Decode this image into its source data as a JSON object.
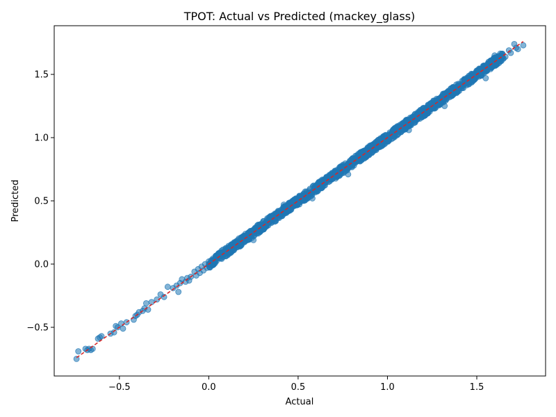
{
  "chart_data": {
    "type": "scatter",
    "title": "TPOT: Actual vs Predicted (mackey_glass)",
    "xlabel": "Actual",
    "ylabel": "Predicted",
    "xlim": [
      -0.865,
      1.885
    ],
    "ylim": [
      -0.885,
      1.885
    ],
    "xticks": [
      -0.5,
      0.0,
      0.5,
      1.0,
      1.5
    ],
    "xtick_labels": [
      "−0.5",
      "0.0",
      "0.5",
      "1.0",
      "1.5"
    ],
    "yticks": [
      -0.5,
      0.0,
      0.5,
      1.0,
      1.5
    ],
    "ytick_labels": [
      "−0.5",
      "0.0",
      "0.5",
      "1.0",
      "1.5"
    ],
    "grid": false,
    "marker_color": "#1f77b4",
    "marker_alpha": 0.55,
    "reference_line": {
      "style": "dashed",
      "color": "#d62728",
      "x": [
        -0.74,
        1.76
      ],
      "y": [
        -0.74,
        1.76
      ]
    },
    "points": [
      [
        -0.74,
        -0.75
      ],
      [
        -0.73,
        -0.69
      ],
      [
        -0.69,
        -0.67
      ],
      [
        -0.68,
        -0.68
      ],
      [
        -0.67,
        -0.67
      ],
      [
        -0.66,
        -0.68
      ],
      [
        -0.65,
        -0.67
      ],
      [
        -0.62,
        -0.59
      ],
      [
        -0.61,
        -0.58
      ],
      [
        -0.6,
        -0.57
      ],
      [
        -0.55,
        -0.55
      ],
      [
        -0.53,
        -0.54
      ],
      [
        -0.52,
        -0.49
      ],
      [
        -0.51,
        -0.5
      ],
      [
        -0.49,
        -0.47
      ],
      [
        -0.48,
        -0.51
      ],
      [
        -0.46,
        -0.46
      ],
      [
        -0.42,
        -0.44
      ],
      [
        -0.41,
        -0.41
      ],
      [
        -0.4,
        -0.4
      ],
      [
        -0.39,
        -0.38
      ],
      [
        -0.37,
        -0.37
      ],
      [
        -0.36,
        -0.35
      ],
      [
        -0.35,
        -0.31
      ],
      [
        -0.34,
        -0.36
      ],
      [
        -0.32,
        -0.3
      ],
      [
        -0.29,
        -0.28
      ],
      [
        -0.27,
        -0.24
      ],
      [
        -0.25,
        -0.26
      ],
      [
        -0.23,
        -0.18
      ],
      [
        -0.2,
        -0.19
      ],
      [
        -0.18,
        -0.17
      ],
      [
        -0.17,
        -0.22
      ],
      [
        -0.16,
        -0.15
      ],
      [
        -0.15,
        -0.12
      ],
      [
        -0.13,
        -0.14
      ],
      [
        -0.12,
        -0.11
      ],
      [
        -0.11,
        -0.13
      ],
      [
        -0.1,
        -0.1
      ],
      [
        -0.08,
        -0.06
      ],
      [
        -0.07,
        -0.09
      ],
      [
        -0.06,
        -0.04
      ],
      [
        -0.05,
        -0.07
      ],
      [
        -0.04,
        -0.02
      ],
      [
        -0.03,
        -0.05
      ],
      [
        -0.02,
        0.0
      ],
      [
        -0.01,
        -0.03
      ],
      [
        0.0,
        0.02
      ],
      [
        0.01,
        -0.01
      ],
      [
        1.62,
        1.63
      ],
      [
        1.64,
        1.66
      ],
      [
        1.66,
        1.64
      ],
      [
        1.68,
        1.69
      ],
      [
        1.69,
        1.67
      ],
      [
        1.71,
        1.74
      ],
      [
        1.72,
        1.71
      ],
      [
        1.73,
        1.7
      ],
      [
        1.76,
        1.73
      ],
      [
        1.55,
        1.47
      ],
      [
        1.6,
        1.65
      ],
      [
        1.12,
        1.06
      ],
      [
        0.58,
        0.52
      ],
      [
        0.78,
        0.71
      ],
      [
        1.32,
        1.25
      ],
      [
        0.25,
        0.19
      ],
      [
        0.42,
        0.47
      ]
    ],
    "dense_band": {
      "x_range": [
        0.0,
        1.65
      ],
      "count": 1500,
      "spread": 0.035
    }
  }
}
